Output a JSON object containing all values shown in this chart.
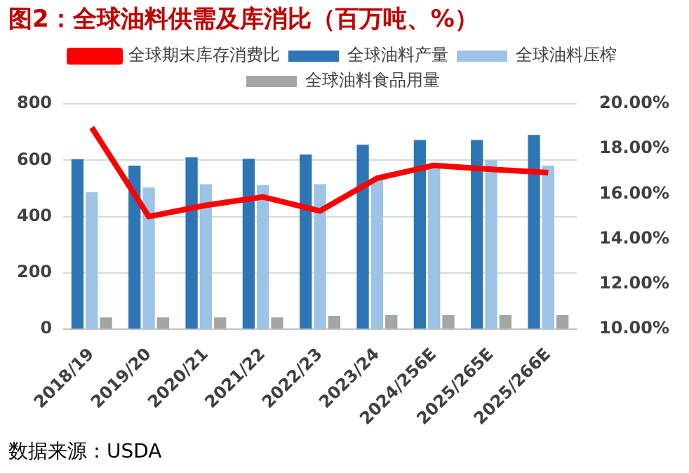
{
  "chart_data": {
    "type": "bar",
    "title": "图2：全球油料供需及库消比（百万吨、%）",
    "categories": [
      "2018/19",
      "2019/20",
      "2020/21",
      "2021/22",
      "2022/23",
      "2023/24",
      "2024/256E",
      "2025/265E",
      "2025/266E"
    ],
    "series": [
      {
        "name": "全球油料产量",
        "color": "#2e75b6",
        "values": [
          603,
          581,
          610,
          605,
          620,
          655,
          672,
          672,
          690
        ]
      },
      {
        "name": "全球油料压榨",
        "color": "#9dc3e6",
        "values": [
          486,
          503,
          515,
          512,
          515,
          530,
          590,
          600,
          581
        ]
      },
      {
        "name": "全球油料食品用量",
        "color": "#a5a5a5",
        "values": [
          42,
          42,
          42,
          42,
          48,
          50,
          50,
          50,
          50
        ]
      },
      {
        "name": "全球期末库存消费比",
        "color": "#ff0000",
        "type": "line",
        "axis": "y2",
        "values": [
          18.95,
          15.0,
          15.5,
          15.87,
          15.25,
          16.7,
          17.27,
          17.1,
          16.95
        ]
      }
    ],
    "ylim": [
      0,
      800
    ],
    "yticks": [
      0,
      200,
      400,
      600,
      800
    ],
    "y2lim": [
      10,
      20
    ],
    "y2ticks": [
      {
        "value": 10,
        "label": "10.00%"
      },
      {
        "value": 12,
        "label": "12.00%"
      },
      {
        "value": 14,
        "label": "14.00%"
      },
      {
        "value": 16,
        "label": "16.00%"
      },
      {
        "value": 18,
        "label": "18.00%"
      },
      {
        "value": 20,
        "label": "20.00%"
      }
    ],
    "grid": "y",
    "legend": "top",
    "marker": "none",
    "annotations": [
      "数据来源：USDA"
    ]
  }
}
